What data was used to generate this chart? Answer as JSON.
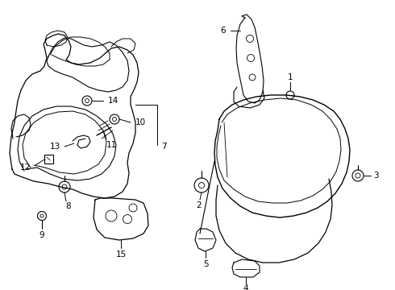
{
  "background_color": "#ffffff",
  "line_color": "#000000",
  "label_color": "#000000",
  "figsize": [
    4.9,
    3.6
  ],
  "dpi": 100,
  "font_size": 7.5
}
